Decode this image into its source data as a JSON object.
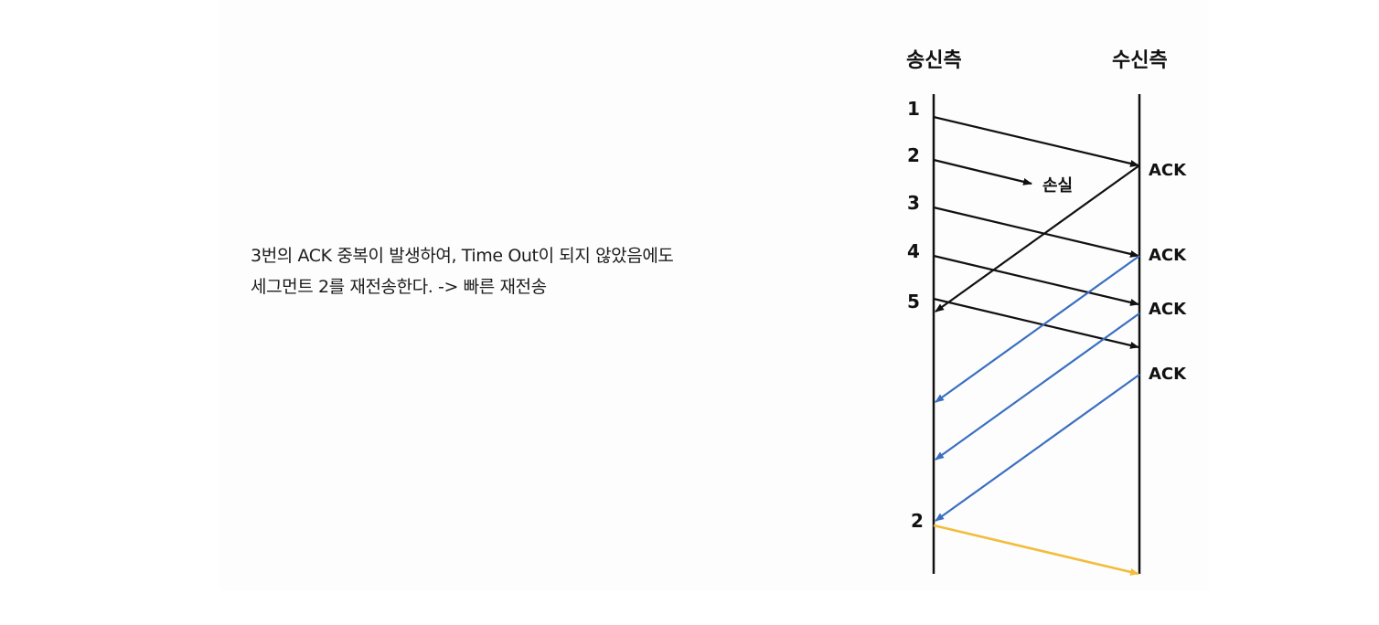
{
  "explanation": {
    "line1": "3번의 ACK 중복이 발생하여, Time Out이 되지 않았음에도",
    "line2": "세그먼트 2를 재전송한다. -> 빠른 재전송"
  },
  "diagram": {
    "sender_label": "송신측",
    "receiver_label": "수신측",
    "segment_labels": [
      "1",
      "2",
      "3",
      "4",
      "5"
    ],
    "retransmit_label": "2",
    "loss_label": "손실",
    "ack_labels": [
      "ACK",
      "ACK",
      "ACK",
      "ACK"
    ],
    "colors": {
      "data": "#111111",
      "duplicate_ack": "#3a6fc0",
      "retransmit": "#f2bd3c"
    }
  }
}
